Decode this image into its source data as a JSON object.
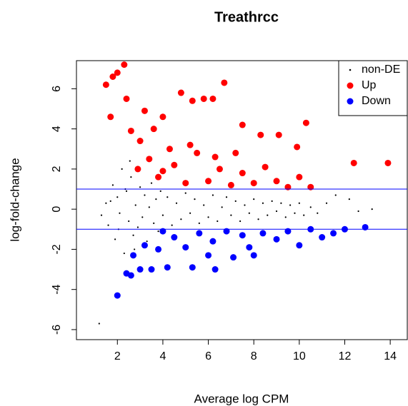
{
  "chart_data": {
    "type": "scatter",
    "title": "Treathrcc",
    "x_label": "Average log CPM",
    "y_label": "log-fold-change",
    "xlim": [
      0.2,
      14.75
    ],
    "ylim": [
      -6.5,
      7.4
    ],
    "xticks": [
      2,
      4,
      6,
      8,
      10,
      12,
      14
    ],
    "yticks": [
      -6,
      -4,
      -2,
      0,
      2,
      4,
      6
    ],
    "hlines": [
      -1,
      1
    ],
    "hline_color": "#0000ff",
    "legend": "topright",
    "series": [
      {
        "name": "non-DE",
        "color": "#000000",
        "x": [
          1.2,
          1.5,
          1.6,
          1.8,
          1.9,
          2.0,
          2.1,
          2.2,
          2.3,
          2.4,
          2.5,
          2.6,
          2.7,
          2.8,
          2.9,
          3.0,
          3.1,
          3.2,
          3.3,
          3.4,
          3.5,
          3.6,
          3.7,
          3.8,
          3.9,
          4.0,
          4.2,
          4.4,
          4.6,
          4.8,
          5.0,
          5.2,
          5.4,
          5.6,
          5.8,
          6.0,
          6.2,
          6.4,
          6.6,
          6.8,
          7.0,
          7.2,
          7.4,
          7.6,
          7.8,
          8.0,
          8.2,
          8.4,
          8.6,
          8.8,
          9.0,
          9.2,
          9.4,
          9.6,
          9.8,
          10.0,
          10.2,
          10.5,
          10.8,
          11.2,
          11.6,
          12.2,
          12.6,
          13.2,
          1.3,
          1.7,
          2.05,
          2.35,
          2.55,
          2.75
        ],
        "y": [
          -5.7,
          0.3,
          -0.8,
          1.2,
          -1.5,
          0.6,
          -0.2,
          2.0,
          -2.2,
          0.9,
          -0.6,
          1.6,
          -1.3,
          0.2,
          -0.9,
          1.1,
          -0.4,
          0.7,
          -1.6,
          0.1,
          1.3,
          -0.7,
          0.5,
          -1.1,
          0.9,
          -0.3,
          0.6,
          -0.8,
          0.3,
          -0.5,
          0.8,
          -0.2,
          0.5,
          -0.7,
          0.2,
          -0.4,
          0.7,
          -0.6,
          0.1,
          0.6,
          -0.3,
          0.4,
          -0.6,
          0.2,
          -0.2,
          0.5,
          -0.5,
          0.3,
          -0.3,
          0.4,
          -0.1,
          0.3,
          -0.4,
          0.2,
          -0.2,
          0.3,
          -0.3,
          0.1,
          -0.2,
          0.3,
          0.7,
          0.5,
          -0.1,
          0.0,
          -0.3,
          0.4,
          -1.0,
          1.0,
          2.4,
          -2.0
        ]
      },
      {
        "name": "Up",
        "color": "#ff0000",
        "x": [
          1.5,
          1.7,
          1.8,
          2.0,
          2.3,
          2.4,
          2.6,
          3.2,
          3.6,
          4.0,
          4.3,
          4.8,
          5.3,
          5.8,
          6.2,
          6.7,
          7.5,
          8.3,
          9.1,
          9.9,
          10.3,
          12.4,
          13.9,
          2.9,
          3.4,
          3.8,
          4.5,
          5.0,
          5.5,
          6.0,
          6.5,
          7.0,
          7.5,
          8.0,
          8.5,
          9.0,
          9.5,
          10.0,
          10.5,
          3.0,
          4.0,
          5.2,
          6.3,
          7.2
        ],
        "y": [
          6.2,
          4.6,
          6.6,
          6.8,
          7.2,
          5.5,
          3.9,
          4.9,
          4.0,
          4.6,
          3.0,
          5.8,
          5.4,
          5.5,
          5.5,
          6.3,
          4.2,
          3.7,
          3.7,
          3.1,
          4.3,
          2.3,
          2.3,
          2.0,
          2.5,
          1.6,
          2.2,
          1.3,
          2.8,
          1.4,
          2.0,
          1.2,
          1.8,
          1.3,
          2.1,
          1.4,
          1.1,
          1.6,
          1.1,
          3.4,
          1.9,
          3.2,
          2.6,
          2.8
        ]
      },
      {
        "name": "Down",
        "color": "#0000ff",
        "x": [
          2.0,
          2.4,
          2.6,
          3.0,
          3.5,
          4.2,
          5.3,
          6.3,
          7.1,
          8.0,
          9.0,
          10.0,
          11.0,
          12.0,
          12.9,
          2.7,
          3.2,
          3.8,
          4.5,
          5.0,
          5.6,
          6.2,
          6.8,
          7.5,
          8.4,
          9.5,
          10.5,
          11.5,
          4.0,
          6.0,
          7.8
        ],
        "y": [
          -4.3,
          -3.2,
          -3.3,
          -3.0,
          -3.0,
          -2.9,
          -2.9,
          -3.0,
          -2.4,
          -2.3,
          -1.5,
          -1.8,
          -1.4,
          -1.0,
          -0.9,
          -2.3,
          -1.8,
          -2.0,
          -1.4,
          -1.9,
          -1.2,
          -1.6,
          -1.1,
          -1.3,
          -1.2,
          -1.1,
          -1.0,
          -1.2,
          -1.1,
          -2.3,
          -1.9
        ]
      }
    ]
  }
}
